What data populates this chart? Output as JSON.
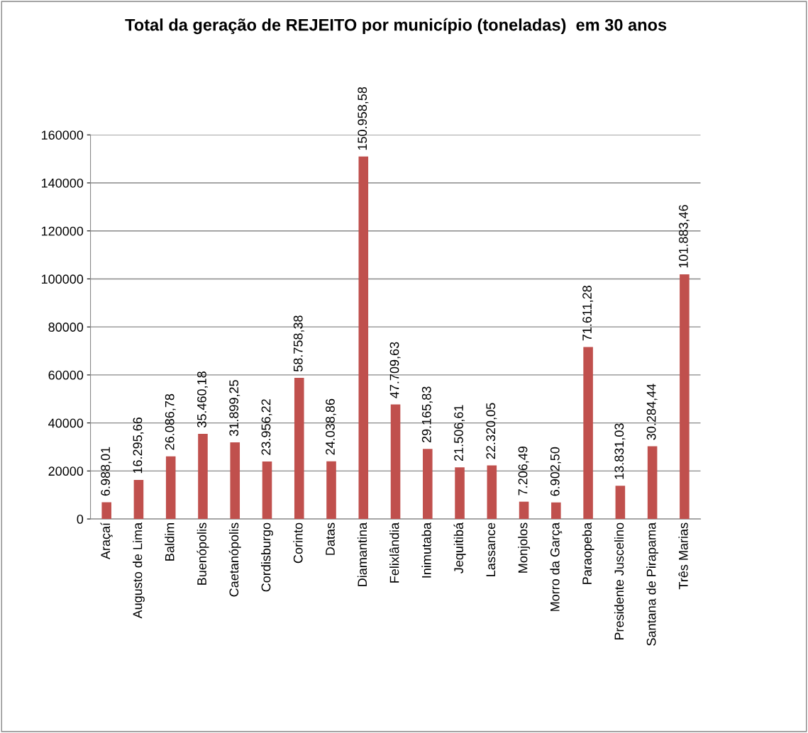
{
  "chart_data": {
    "type": "bar",
    "title": "Total da geração de REJEITO por município (toneladas)  em 30 anos",
    "categories": [
      "Araçaí",
      "Augusto de Lima",
      "Baldim",
      "Buenópolis",
      "Caetanópolis",
      "Cordisburgo",
      "Corinto",
      "Datas",
      "Diamantina",
      "Felixlândia",
      "Inimutaba",
      "Jequitibá",
      "Lassance",
      "Monjolos",
      "Morro da Garça",
      "Paraopeba",
      "Presidente Juscelino",
      "Santana de Pirapama",
      "Três Marias"
    ],
    "values": [
      6988.01,
      16295.66,
      26086.78,
      35460.18,
      31899.25,
      23956.22,
      58758.38,
      24038.86,
      150958.58,
      47709.63,
      29165.83,
      21506.61,
      22320.05,
      7206.49,
      6902.5,
      71611.28,
      13831.03,
      30284.44,
      101883.46
    ],
    "value_labels": [
      "6.988,01",
      "16.295,66",
      "26.086,78",
      "35.460,18",
      "31.899,25",
      "23.956,22",
      "58.758,38",
      "24.038,86",
      "150.958,58",
      "47.709,63",
      "29.165,83",
      "21.506,61",
      "22.320,05",
      "7.206,49",
      "6.902,50",
      "71.611,28",
      "13.831,03",
      "30.284,44",
      "101.883,46"
    ],
    "color": "#c0504d",
    "ylim": [
      0,
      160000
    ],
    "yticks": [
      0,
      20000,
      40000,
      60000,
      80000,
      100000,
      120000,
      140000,
      160000
    ],
    "grid": "y",
    "legend": false
  }
}
